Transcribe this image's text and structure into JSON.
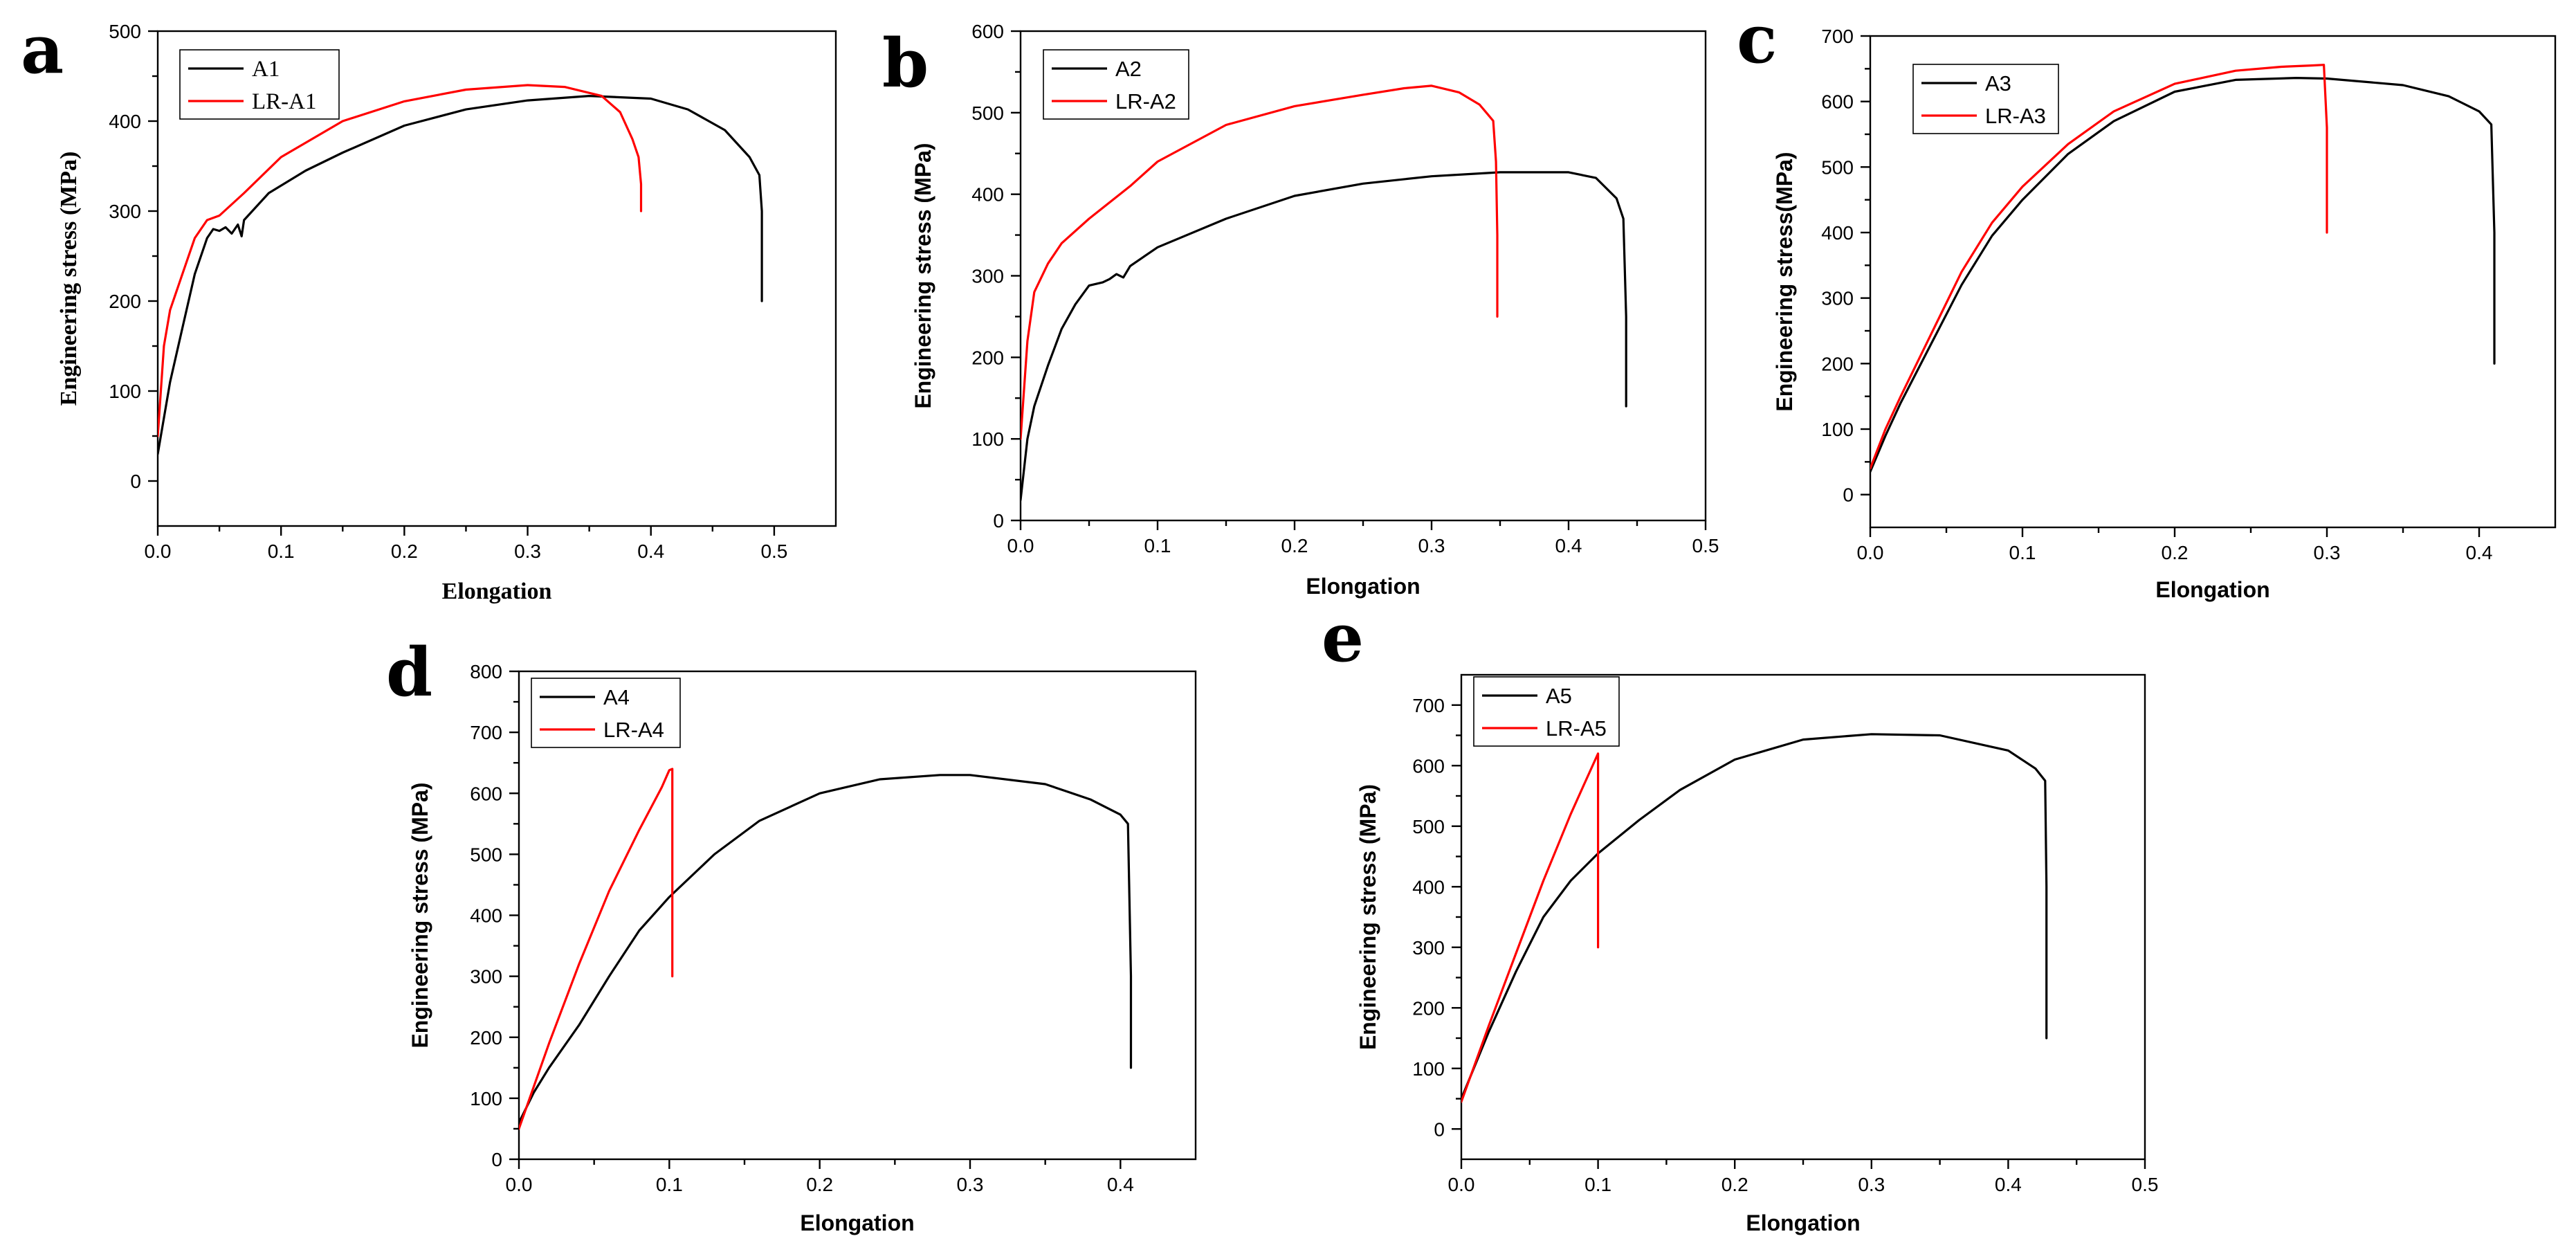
{
  "chart_data": [
    {
      "letter": "a",
      "type": "line",
      "xlabel": "Elongation",
      "ylabel": "Engineering stress (MPa)",
      "xlim": [
        0,
        0.55
      ],
      "ylim": [
        -50,
        500
      ],
      "xticks": [
        0,
        0.1,
        0.2,
        0.3,
        0.4,
        0.5
      ],
      "xtick_labels": [
        "0.0",
        "0.1",
        "0.2",
        "0.3",
        "0.4",
        "0.5"
      ],
      "yticks": [
        0,
        100,
        200,
        300,
        400,
        500
      ],
      "ytick_labels": [
        "0",
        "100",
        "200",
        "300",
        "400",
        "500"
      ],
      "series": [
        {
          "name": "A1",
          "color": "#000000",
          "x": [
            0,
            0.01,
            0.02,
            0.03,
            0.04,
            0.045,
            0.05,
            0.055,
            0.06,
            0.065,
            0.068,
            0.07,
            0.09,
            0.12,
            0.15,
            0.2,
            0.25,
            0.3,
            0.35,
            0.4,
            0.43,
            0.46,
            0.48,
            0.488,
            0.49,
            0.49
          ],
          "y": [
            30,
            110,
            170,
            230,
            270,
            280,
            278,
            282,
            275,
            285,
            272,
            290,
            320,
            345,
            365,
            395,
            413,
            423,
            428,
            425,
            413,
            390,
            360,
            340,
            300,
            200
          ]
        },
        {
          "name": "LR-A1",
          "color": "#ff0000",
          "x": [
            0,
            0.005,
            0.01,
            0.02,
            0.03,
            0.04,
            0.05,
            0.07,
            0.1,
            0.15,
            0.2,
            0.25,
            0.3,
            0.33,
            0.36,
            0.375,
            0.385,
            0.39,
            0.392,
            0.392
          ],
          "y": [
            50,
            150,
            190,
            230,
            270,
            290,
            295,
            320,
            360,
            400,
            422,
            435,
            440,
            438,
            428,
            410,
            380,
            360,
            330,
            300
          ]
        }
      ],
      "legend": {
        "location": "top-left"
      }
    },
    {
      "letter": "b",
      "type": "line",
      "xlabel": "Elongation",
      "ylabel": "Engineering stress (MPa)",
      "xlim": [
        0,
        0.5
      ],
      "ylim": [
        0,
        600
      ],
      "xticks": [
        0,
        0.1,
        0.2,
        0.3,
        0.4,
        0.5
      ],
      "xtick_labels": [
        "0.0",
        "0.1",
        "0.2",
        "0.3",
        "0.4",
        "0.5"
      ],
      "yticks": [
        0,
        100,
        200,
        300,
        400,
        500,
        600
      ],
      "ytick_labels": [
        "0",
        "100",
        "200",
        "300",
        "400",
        "500",
        "600"
      ],
      "series": [
        {
          "name": "A2",
          "color": "#000000",
          "x": [
            0,
            0.005,
            0.01,
            0.02,
            0.03,
            0.04,
            0.05,
            0.06,
            0.065,
            0.07,
            0.075,
            0.08,
            0.1,
            0.15,
            0.2,
            0.25,
            0.3,
            0.35,
            0.4,
            0.42,
            0.435,
            0.44,
            0.442,
            0.442
          ],
          "y": [
            25,
            100,
            140,
            190,
            235,
            265,
            288,
            292,
            296,
            302,
            298,
            312,
            335,
            370,
            398,
            413,
            422,
            427,
            427,
            420,
            395,
            370,
            250,
            140
          ]
        },
        {
          "name": "LR-A2",
          "color": "#ff0000",
          "x": [
            0,
            0.005,
            0.01,
            0.02,
            0.03,
            0.05,
            0.08,
            0.1,
            0.15,
            0.2,
            0.25,
            0.28,
            0.3,
            0.32,
            0.335,
            0.34,
            0.345,
            0.347,
            0.348,
            0.348
          ],
          "y": [
            100,
            220,
            280,
            315,
            340,
            370,
            410,
            440,
            485,
            508,
            522,
            530,
            533,
            525,
            510,
            500,
            490,
            440,
            350,
            250
          ]
        }
      ],
      "legend": {
        "location": "top-left"
      }
    },
    {
      "letter": "c",
      "type": "line",
      "xlabel": "Elongation",
      "ylabel": "Engineering stress(MPa)",
      "xlim": [
        0,
        0.45
      ],
      "ylim": [
        -50,
        700
      ],
      "xticks": [
        0,
        0.1,
        0.2,
        0.3,
        0.4
      ],
      "xtick_labels": [
        "0.0",
        "0.1",
        "0.2",
        "0.3",
        "0.4"
      ],
      "yticks": [
        0,
        100,
        200,
        300,
        400,
        500,
        600,
        700
      ],
      "ytick_labels": [
        "0",
        "100",
        "200",
        "300",
        "400",
        "500",
        "600",
        "700"
      ],
      "series": [
        {
          "name": "A3",
          "color": "#000000",
          "x": [
            0,
            0.01,
            0.02,
            0.04,
            0.06,
            0.08,
            0.1,
            0.13,
            0.16,
            0.2,
            0.24,
            0.28,
            0.3,
            0.35,
            0.38,
            0.4,
            0.408,
            0.41,
            0.41
          ],
          "y": [
            35,
            90,
            140,
            230,
            320,
            395,
            450,
            520,
            570,
            615,
            633,
            636,
            635,
            625,
            608,
            585,
            565,
            400,
            200
          ]
        },
        {
          "name": "LR-A3",
          "color": "#ff0000",
          "x": [
            0,
            0.01,
            0.02,
            0.04,
            0.06,
            0.08,
            0.1,
            0.13,
            0.16,
            0.2,
            0.24,
            0.27,
            0.29,
            0.298,
            0.3,
            0.3
          ],
          "y": [
            40,
            100,
            150,
            245,
            340,
            415,
            470,
            535,
            585,
            627,
            647,
            653,
            655,
            656,
            560,
            400
          ]
        }
      ],
      "legend": {
        "location": "top-left"
      }
    },
    {
      "letter": "d",
      "type": "line",
      "xlabel": "Elongation",
      "ylabel": "Engineering stress (MPa)",
      "xlim": [
        0,
        0.45
      ],
      "ylim": [
        0,
        800
      ],
      "xticks": [
        0,
        0.1,
        0.2,
        0.3,
        0.4
      ],
      "xtick_labels": [
        "0.0",
        "0.1",
        "0.2",
        "0.3",
        "0.4"
      ],
      "yticks": [
        0,
        100,
        200,
        300,
        400,
        500,
        600,
        700,
        800
      ],
      "ytick_labels": [
        "0",
        "100",
        "200",
        "300",
        "400",
        "500",
        "600",
        "700",
        "800"
      ],
      "series": [
        {
          "name": "A4",
          "color": "#000000",
          "x": [
            0,
            0.01,
            0.02,
            0.04,
            0.06,
            0.08,
            0.1,
            0.13,
            0.16,
            0.2,
            0.24,
            0.28,
            0.3,
            0.35,
            0.38,
            0.4,
            0.405,
            0.407,
            0.407
          ],
          "y": [
            60,
            110,
            150,
            220,
            300,
            375,
            430,
            500,
            555,
            600,
            623,
            630,
            630,
            615,
            590,
            565,
            550,
            300,
            150
          ]
        },
        {
          "name": "LR-A4",
          "color": "#ff0000",
          "x": [
            0,
            0.01,
            0.02,
            0.04,
            0.06,
            0.08,
            0.095,
            0.1,
            0.102,
            0.102
          ],
          "y": [
            50,
            120,
            190,
            320,
            440,
            540,
            610,
            638,
            640,
            300
          ]
        }
      ],
      "legend": {
        "location": "top-left"
      }
    },
    {
      "letter": "e",
      "type": "line",
      "xlabel": "Elongation",
      "ylabel": "Engineering stress (MPa)",
      "xlim": [
        0,
        0.5
      ],
      "ylim": [
        -50,
        750
      ],
      "xticks": [
        0,
        0.1,
        0.2,
        0.3,
        0.4,
        0.5
      ],
      "xtick_labels": [
        "0.0",
        "0.1",
        "0.2",
        "0.3",
        "0.4",
        "0.5"
      ],
      "yticks": [
        0,
        100,
        200,
        300,
        400,
        500,
        600,
        700
      ],
      "ytick_labels": [
        "0",
        "100",
        "200",
        "300",
        "400",
        "500",
        "600",
        "700"
      ],
      "series": [
        {
          "name": "A5",
          "color": "#000000",
          "x": [
            0,
            0.02,
            0.04,
            0.06,
            0.08,
            0.1,
            0.13,
            0.16,
            0.2,
            0.25,
            0.3,
            0.35,
            0.4,
            0.42,
            0.427,
            0.428,
            0.428
          ],
          "y": [
            50,
            160,
            260,
            350,
            410,
            455,
            510,
            560,
            610,
            643,
            652,
            650,
            625,
            595,
            575,
            400,
            150
          ]
        },
        {
          "name": "LR-A5",
          "color": "#ff0000",
          "x": [
            0,
            0.02,
            0.04,
            0.06,
            0.08,
            0.09,
            0.1,
            0.1
          ],
          "y": [
            45,
            170,
            290,
            410,
            520,
            570,
            620,
            300
          ]
        }
      ],
      "legend": {
        "location": "top-left"
      }
    }
  ]
}
